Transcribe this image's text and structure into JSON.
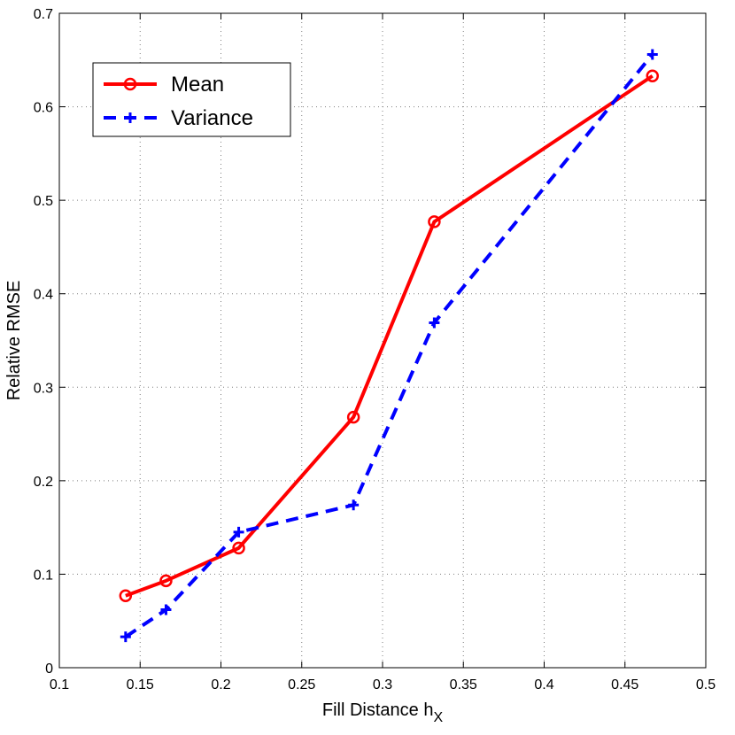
{
  "chart_data": {
    "type": "line",
    "title": "",
    "xlabel": "Fill Distance h",
    "xlabel_subscript": "X",
    "ylabel": "Relative RMSE",
    "xlim": [
      0.1,
      0.5
    ],
    "ylim": [
      0,
      0.7
    ],
    "xticks": [
      "0.1",
      "0.15",
      "0.2",
      "0.25",
      "0.3",
      "0.35",
      "0.4",
      "0.45",
      "0.5"
    ],
    "yticks": [
      "0",
      "0.1",
      "0.2",
      "0.3",
      "0.4",
      "0.5",
      "0.6",
      "0.7"
    ],
    "grid": true,
    "legend_position": "top-left",
    "series": [
      {
        "name": "Mean",
        "color": "#ff0000",
        "line_style": "solid",
        "marker": "circle",
        "x": [
          0.141,
          0.166,
          0.211,
          0.282,
          0.332,
          0.467
        ],
        "y": [
          0.077,
          0.093,
          0.128,
          0.268,
          0.477,
          0.633
        ]
      },
      {
        "name": "Variance",
        "color": "#0000ff",
        "line_style": "dashed",
        "marker": "plus",
        "x": [
          0.141,
          0.166,
          0.211,
          0.282,
          0.332,
          0.467
        ],
        "y": [
          0.033,
          0.062,
          0.145,
          0.174,
          0.369,
          0.656
        ]
      }
    ]
  }
}
